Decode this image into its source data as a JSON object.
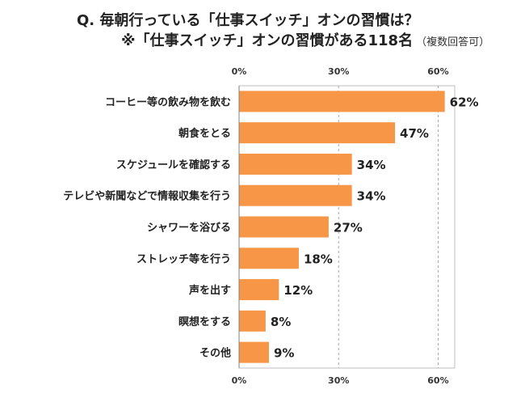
{
  "title": {
    "line1": "Q. 毎朝行っている「仕事スイッチ」オンの習慣は？",
    "line2": "※「仕事スイッチ」オンの習慣がある118名",
    "note": "（複数回答可）"
  },
  "chart_data": {
    "type": "bar",
    "orientation": "horizontal",
    "categories": [
      "コーヒー等の飲み物を飲む",
      "朝食をとる",
      "スケジュールを確認する",
      "テレビや新聞などで情報収集を行う",
      "シャワーを浴びる",
      "ストレッチ等を行う",
      "声を出す",
      "瞑想をする",
      "その他"
    ],
    "values": [
      62,
      47,
      34,
      34,
      27,
      18,
      12,
      8,
      9
    ],
    "value_labels": [
      "62%",
      "47%",
      "34%",
      "34%",
      "27%",
      "18%",
      "12%",
      "8%",
      "9%"
    ],
    "xlim": [
      0,
      65
    ],
    "xticks": [
      0,
      30,
      60
    ],
    "xtick_labels": [
      "0%",
      "30%",
      "60%"
    ],
    "grid": "vertical-dashed",
    "bar_color": "#f79646"
  }
}
